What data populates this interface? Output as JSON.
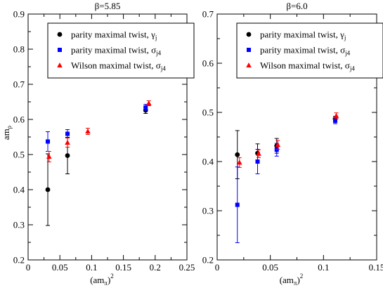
{
  "chart_data": [
    {
      "type": "scatter",
      "title": "β=5.85",
      "xlabel": "(am",
      "xlabel_sub": "π",
      "xlabel_sup": "2",
      "ylabel": "am",
      "ylabel_sub": "ρ",
      "xlim": [
        0,
        0.25
      ],
      "ylim": [
        0.2,
        0.9
      ],
      "xticks": [
        "0",
        "0.05",
        "0.1",
        "0.15",
        "0.2",
        "0.25"
      ],
      "yticks": [
        "0.2",
        "0.3",
        "0.4",
        "0.5",
        "0.6",
        "0.7",
        "0.8",
        "0.9"
      ],
      "legend_position": "top-right",
      "series": [
        {
          "name": "parity maximal twist, γ",
          "name_sub": "j",
          "marker": "circle",
          "color": "#000000",
          "points": [
            {
              "x": 0.031,
              "y": 0.4,
              "err": 0.102
            },
            {
              "x": 0.062,
              "y": 0.497,
              "err": 0.052
            },
            {
              "x": 0.185,
              "y": 0.626,
              "err": 0.009
            }
          ]
        },
        {
          "name": "parity maximal twist, σ",
          "name_sub": "j4",
          "marker": "square",
          "color": "#0000ff",
          "points": [
            {
              "x": 0.031,
              "y": 0.537,
              "err": 0.028
            },
            {
              "x": 0.062,
              "y": 0.559,
              "err": 0.012
            },
            {
              "x": 0.185,
              "y": 0.634,
              "err": 0.009
            }
          ]
        },
        {
          "name": "Wilson maximal twist, σ",
          "name_sub": "j4",
          "marker": "triangle",
          "color": "#ff0000",
          "points": [
            {
              "x": 0.033,
              "y": 0.494,
              "err": 0.015
            },
            {
              "x": 0.062,
              "y": 0.534,
              "err": 0.013
            },
            {
              "x": 0.094,
              "y": 0.566,
              "err": 0.009
            },
            {
              "x": 0.19,
              "y": 0.646,
              "err": 0.007
            }
          ]
        }
      ]
    },
    {
      "type": "scatter",
      "title": "β=6.0",
      "xlabel": "(am",
      "xlabel_sub": "π",
      "xlabel_sup": "2",
      "ylabel": "",
      "xlim": [
        0,
        0.15
      ],
      "ylim": [
        0.2,
        0.7
      ],
      "xticks": [
        "0",
        "0.05",
        "0.1",
        "0.15"
      ],
      "yticks": [
        "0.2",
        "0.3",
        "0.4",
        "0.5",
        "0.6",
        "0.7"
      ],
      "legend_position": "top-right",
      "series": [
        {
          "name": "parity maximal twist, γ",
          "name_sub": "j",
          "marker": "circle",
          "color": "#000000",
          "points": [
            {
              "x": 0.019,
              "y": 0.414,
              "err": 0.049
            },
            {
              "x": 0.038,
              "y": 0.417,
              "err": 0.019
            },
            {
              "x": 0.056,
              "y": 0.432,
              "err": 0.015
            },
            {
              "x": 0.111,
              "y": 0.487,
              "err": 0.005
            }
          ]
        },
        {
          "name": "parity maximal twist, σ",
          "name_sub": "j4",
          "marker": "square",
          "color": "#0000ff",
          "points": [
            {
              "x": 0.019,
              "y": 0.312,
              "err": 0.077
            },
            {
              "x": 0.038,
              "y": 0.4,
              "err": 0.025
            },
            {
              "x": 0.056,
              "y": 0.424,
              "err": 0.013
            },
            {
              "x": 0.111,
              "y": 0.483,
              "err": 0.006
            }
          ]
        },
        {
          "name": "Wilson maximal twist, σ",
          "name_sub": "j4",
          "marker": "triangle",
          "color": "#ff0000",
          "points": [
            {
              "x": 0.021,
              "y": 0.398,
              "err": 0.01
            },
            {
              "x": 0.039,
              "y": 0.416,
              "err": 0.008
            },
            {
              "x": 0.057,
              "y": 0.434,
              "err": 0.009
            },
            {
              "x": 0.112,
              "y": 0.493,
              "err": 0.006
            }
          ]
        }
      ]
    }
  ]
}
